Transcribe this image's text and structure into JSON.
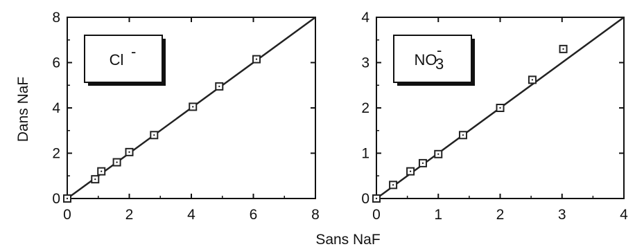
{
  "figure": {
    "ylabel": "Dans NaF",
    "xlabel": "Sans NaF"
  },
  "chart_data": [
    {
      "type": "scatter",
      "ion_label": {
        "main": "Cl",
        "superscript": "-",
        "subscript": ""
      },
      "xlabel": "Sans NaF",
      "ylabel": "Dans NaF",
      "xlim": [
        0,
        8
      ],
      "ylim": [
        0,
        8
      ],
      "xticks": [
        0,
        2,
        4,
        6,
        8
      ],
      "yticks": [
        0,
        2,
        4,
        6,
        8
      ],
      "xtick_labels": [
        "0",
        "2",
        "4",
        "6",
        "8"
      ],
      "ytick_labels": [
        "0",
        "2",
        "4",
        "6",
        "8"
      ],
      "grid": false,
      "reference_line": [
        [
          0,
          0
        ],
        [
          8,
          8
        ]
      ],
      "marker": "open-square",
      "series": [
        {
          "x": [
            0,
            0.9,
            1.1,
            1.6,
            2.0,
            2.8,
            4.05,
            4.9,
            6.1
          ],
          "y": [
            0,
            0.85,
            1.2,
            1.6,
            2.05,
            2.8,
            4.05,
            4.95,
            6.15
          ]
        }
      ]
    },
    {
      "type": "scatter",
      "ion_label": {
        "main": "NO",
        "superscript": "-",
        "subscript": "3"
      },
      "xlabel": "Sans NaF",
      "ylabel": "Dans NaF",
      "xlim": [
        0,
        4
      ],
      "ylim": [
        0,
        4
      ],
      "xticks": [
        0,
        1,
        2,
        3,
        4
      ],
      "yticks": [
        0,
        1,
        2,
        3,
        4
      ],
      "xtick_labels": [
        "0",
        "1",
        "2",
        "3",
        "4"
      ],
      "ytick_labels": [
        "0",
        "1",
        "2",
        "3",
        "4"
      ],
      "grid": false,
      "reference_line": [
        [
          0,
          0
        ],
        [
          4,
          4
        ]
      ],
      "marker": "open-square",
      "series": [
        {
          "x": [
            0,
            0.27,
            0.55,
            0.75,
            1.0,
            1.4,
            2.0,
            2.52,
            3.02
          ],
          "y": [
            0,
            0.3,
            0.6,
            0.78,
            0.98,
            1.4,
            2.0,
            2.62,
            3.3
          ]
        }
      ]
    }
  ]
}
